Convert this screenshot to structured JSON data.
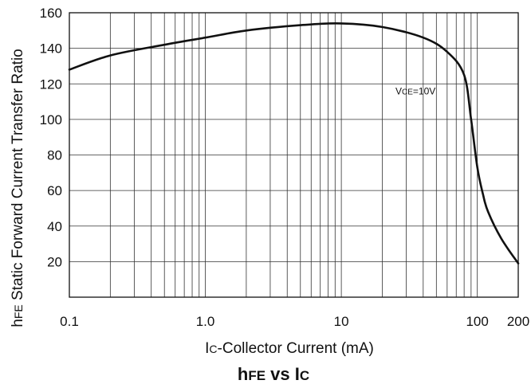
{
  "chart_data": {
    "type": "line",
    "x_scale": "log",
    "y_scale": "linear",
    "xlim": [
      0.1,
      200
    ],
    "ylim": [
      0,
      160
    ],
    "grid": true,
    "xlabel": "IC-Collector Current  (mA)",
    "xlabel_main": "I",
    "xlabel_sub": "C",
    "xlabel_rest": "-Collector Current  (mA)",
    "ylabel": "hFE Static Forward Current Transfer Ratio",
    "ylabel_main": "h",
    "ylabel_sub": "FE",
    "ylabel_rest": " Static Forward Current Transfer Ratio",
    "title": "hFE vs IC",
    "title_parts": [
      "h",
      "FE",
      " vs I",
      "C"
    ],
    "x_ticks": [
      {
        "value": 0.1,
        "label": "0.1"
      },
      {
        "value": 1,
        "label": "1.0"
      },
      {
        "value": 10,
        "label": "10"
      },
      {
        "value": 100,
        "label": "100"
      },
      {
        "value": 200,
        "label": "200"
      }
    ],
    "y_ticks": [
      {
        "value": 20,
        "label": "20"
      },
      {
        "value": 40,
        "label": "40"
      },
      {
        "value": 60,
        "label": "60"
      },
      {
        "value": 80,
        "label": "80"
      },
      {
        "value": 100,
        "label": "100"
      },
      {
        "value": 120,
        "label": "120"
      },
      {
        "value": 140,
        "label": "140"
      },
      {
        "value": 160,
        "label": "160"
      }
    ],
    "annotation": {
      "text": "VCE=10V",
      "main": "V",
      "sub": "CE",
      "rest": "=10V",
      "x": 25,
      "y": 114
    },
    "series": [
      {
        "x": [
          0.1,
          0.2,
          0.5,
          1,
          2,
          5,
          10,
          20,
          40,
          60,
          80,
          90,
          100,
          110,
          120,
          150,
          200
        ],
        "y": [
          128,
          136,
          142,
          146,
          150,
          153,
          154,
          152,
          146,
          138,
          125,
          100,
          73,
          58,
          48,
          33,
          19
        ]
      }
    ]
  }
}
